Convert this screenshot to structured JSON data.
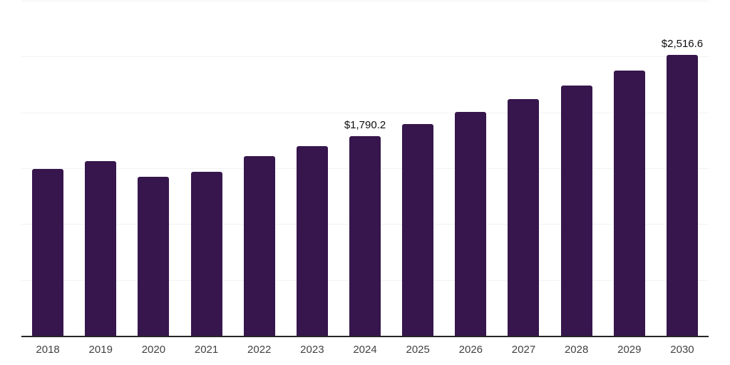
{
  "chart_data": {
    "type": "bar",
    "title": "",
    "xlabel": "",
    "ylabel": "",
    "categories": [
      "2018",
      "2019",
      "2020",
      "2021",
      "2022",
      "2023",
      "2024",
      "2025",
      "2026",
      "2027",
      "2028",
      "2029",
      "2030"
    ],
    "values": [
      1494.5,
      1566.9,
      1424.0,
      1469.0,
      1607.5,
      1697.0,
      1790.2,
      1899.0,
      2007.5,
      2120.5,
      2242.0,
      2376.0,
      2516.6
    ],
    "value_labels": [
      {
        "index": 6,
        "text": "$1,790.2"
      },
      {
        "index": 12,
        "text": "$2,516.6"
      }
    ],
    "ylim": [
      0,
      3000
    ],
    "gridline_step": 500,
    "grid": "horizontal-only",
    "legend_position": "none",
    "colors": {
      "bar": "#36164C",
      "gridline": "#f2f2f2",
      "axis_line": "#262626",
      "value_label_text": "#0d0d0d",
      "tick_label_text": "#424242",
      "background": "#ffffff"
    }
  }
}
